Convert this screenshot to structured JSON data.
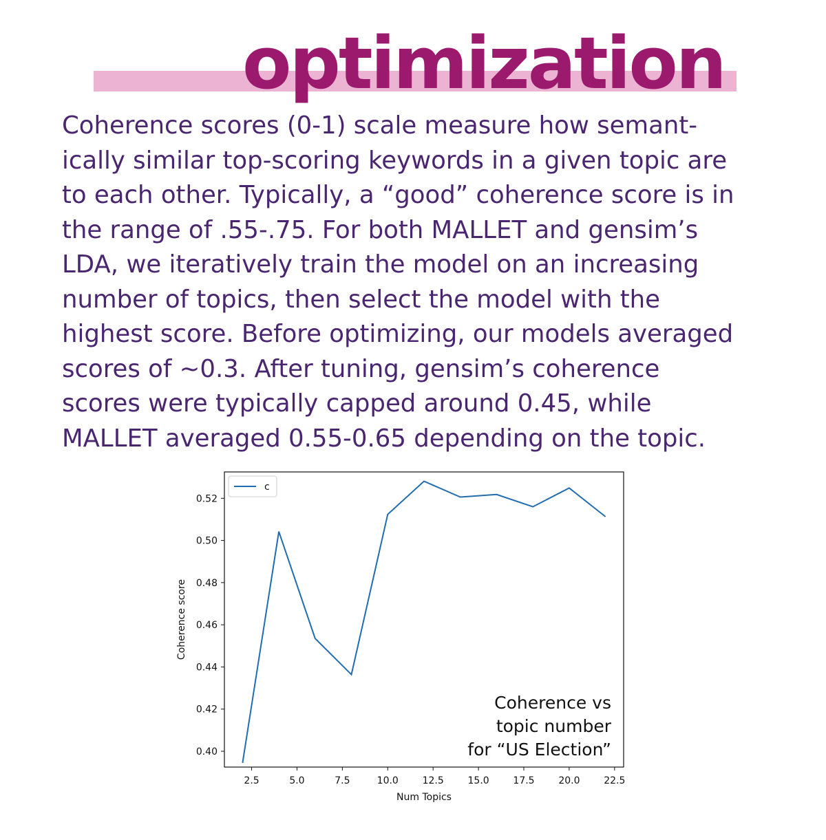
{
  "header": {
    "title": "optimization"
  },
  "body": {
    "lines": [
      "Coherence scores (0-1) scale measure how semant-",
      "ically similar top-scoring keywords in a given topic are",
      "to each other. Typically, a “good” coherence score is in",
      "the range of .55-.75. For both MALLET and gensim’s",
      "LDA, we iteratively train the model on an increasing",
      "number of topics, then select the model with the",
      "highest score. Before optimizing, our models averaged",
      "scores of ∼0.3. After tuning, gensim’s coherence",
      "scores were typically capped around 0.45, while",
      "MALLET averaged 0.55-0.65 depending on the topic."
    ]
  },
  "colors": {
    "title": "#9b1a6e",
    "title_band": "#ecb3d3",
    "body_text": "#4a2570",
    "series_line": "#1f6cb0"
  },
  "chart_data": {
    "type": "line",
    "title": "",
    "xlabel": "Num Topics",
    "ylabel": "Coherence score",
    "xlim": [
      1.0,
      23.0
    ],
    "ylim": [
      0.3925,
      0.5325
    ],
    "x_ticks": [
      2.5,
      5.0,
      7.5,
      10.0,
      12.5,
      15.0,
      17.5,
      20.0,
      22.5
    ],
    "x_tick_labels": [
      "2.5",
      "5.0",
      "7.5",
      "10.0",
      "12.5",
      "15.0",
      "17.5",
      "20.0",
      "22.5"
    ],
    "y_ticks": [
      0.4,
      0.42,
      0.44,
      0.46,
      0.48,
      0.5,
      0.52
    ],
    "y_tick_labels": [
      "0.40",
      "0.42",
      "0.44",
      "0.46",
      "0.48",
      "0.50",
      "0.52"
    ],
    "legend": {
      "position": "top-left",
      "entries": [
        "c"
      ]
    },
    "grid": false,
    "series": [
      {
        "name": "c",
        "x": [
          2,
          4,
          6,
          8,
          10,
          12,
          14,
          16,
          18,
          20,
          22
        ],
        "y": [
          0.3945,
          0.5042,
          0.4535,
          0.4364,
          0.5124,
          0.5281,
          0.5206,
          0.5218,
          0.516,
          0.5249,
          0.5113
        ]
      }
    ],
    "annotation": {
      "lines": [
        "Coherence vs",
        "topic number",
        "for “US Election”"
      ]
    }
  }
}
